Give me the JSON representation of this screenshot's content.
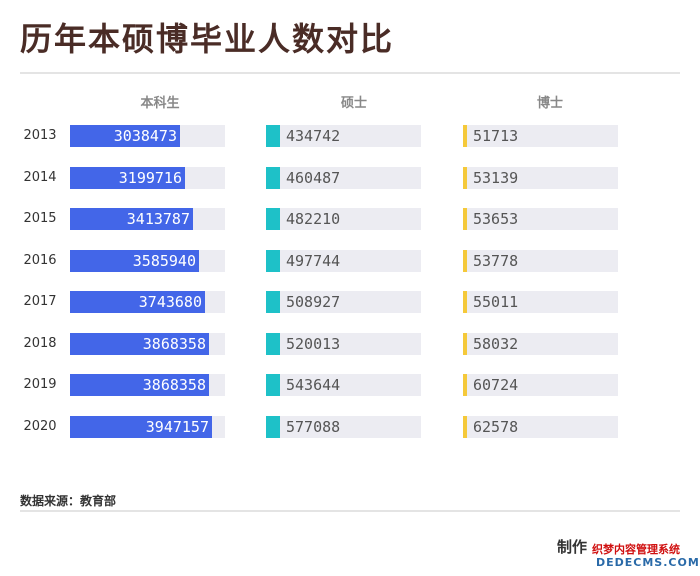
{
  "title": "历年本硕博毕业人数对比",
  "source": "数据来源：教育部",
  "maker": "制作",
  "watermark": {
    "line1": "织梦内容管理系统",
    "line2": "DEDECMS.COM"
  },
  "colors": {
    "bachelor": "#4366e8",
    "master": "#1ec1c8",
    "doctor": "#f5c93a",
    "track": "#ececf2"
  },
  "chart_data": {
    "type": "bar",
    "orientation": "horizontal",
    "categories": [
      "2013",
      "2014",
      "2015",
      "2016",
      "2017",
      "2018",
      "2019",
      "2020"
    ],
    "series": [
      {
        "name": "本科生",
        "values": [
          3038473,
          3199716,
          3413787,
          3585940,
          3743680,
          3868358,
          3868358,
          3947157
        ]
      },
      {
        "name": "硕士",
        "values": [
          434742,
          460487,
          482210,
          497744,
          508927,
          520013,
          543644,
          577088
        ]
      },
      {
        "name": "博士",
        "values": [
          51713,
          53139,
          53653,
          53778,
          55011,
          58032,
          60724,
          62578
        ]
      }
    ]
  }
}
